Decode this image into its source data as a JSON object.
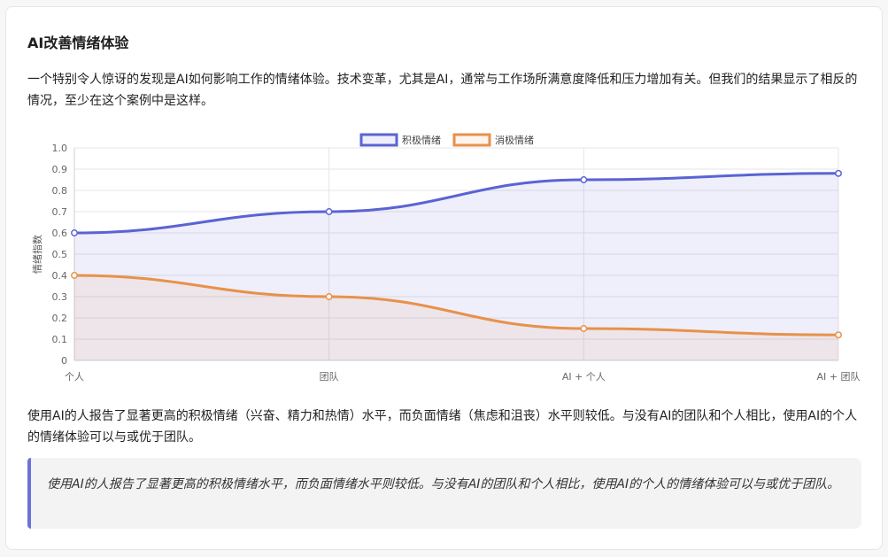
{
  "heading": "AI改善情绪体验",
  "intro": "一个特别令人惊讶的发现是AI如何影响工作的情绪体验。技术变革，尤其是AI，通常与工作场所满意度降低和压力增加有关。但我们的结果显示了相反的情况，至少在这个案例中是这样。",
  "summary": "使用AI的人报告了显著更高的积极情绪（兴奋、精力和热情）水平，而负面情绪（焦虑和沮丧）水平则较低。与没有AI的团队和个人相比，使用AI的个人的情绪体验可以与或优于团队。",
  "quote": "使用AI的人报告了显著更高的积极情绪水平，而负面情绪水平则较低。与没有AI的团队和个人相比，使用AI的个人的情绪体验可以与或优于团队。",
  "chart_data": {
    "type": "line",
    "categories": [
      "个人",
      "团队",
      "AI + 个人",
      "AI + 团队"
    ],
    "series": [
      {
        "name": "积极情绪",
        "values": [
          0.6,
          0.7,
          0.85,
          0.88
        ],
        "color": "#5b63d3",
        "fill": "rgba(91,99,211,0.10)"
      },
      {
        "name": "消极情绪",
        "values": [
          0.4,
          0.3,
          0.15,
          0.12
        ],
        "color": "#e8914a",
        "fill": "rgba(232,145,74,0.10)"
      }
    ],
    "ylabel": "情绪指数",
    "ylim": [
      0,
      1.0
    ],
    "yticks": [
      "0",
      "0.1",
      "0.2",
      "0.3",
      "0.4",
      "0.5",
      "0.6",
      "0.7",
      "0.8",
      "0.9",
      "1.0"
    ],
    "grid": true,
    "legend": "top-center",
    "smooth": true
  }
}
